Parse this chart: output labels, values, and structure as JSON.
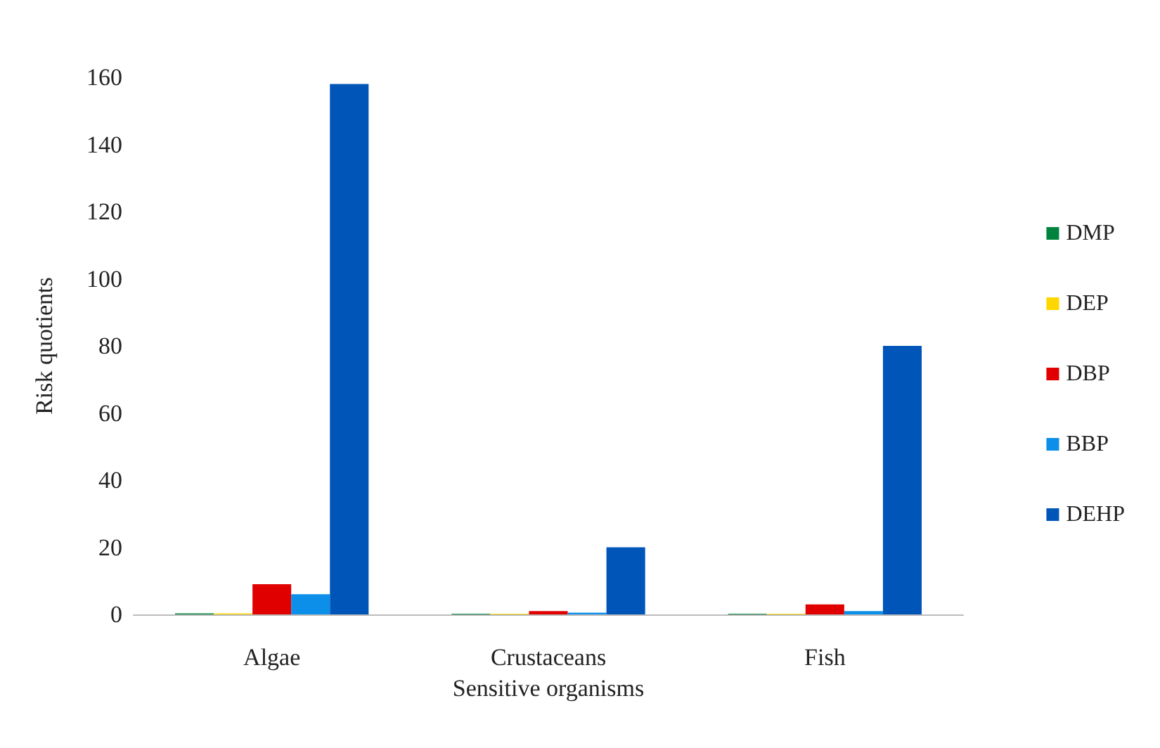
{
  "chart_data": {
    "type": "bar",
    "xlabel": "Sensitive organisms",
    "ylabel": "Risk quotients",
    "categories": [
      "Algae",
      "Crustaceans",
      "Fish"
    ],
    "series": [
      {
        "name": "DMP",
        "color": "#00843d",
        "values": [
          0.3,
          0.2,
          0.2
        ]
      },
      {
        "name": "DEP",
        "color": "#ffd700",
        "values": [
          0.3,
          0.2,
          0.2
        ]
      },
      {
        "name": "DBP",
        "color": "#e00000",
        "values": [
          9,
          1,
          3
        ]
      },
      {
        "name": "BBP",
        "color": "#0b8fe8",
        "values": [
          6,
          0.5,
          1
        ]
      },
      {
        "name": "DEHP",
        "color": "#0055b8",
        "values": [
          158,
          20,
          80
        ]
      }
    ],
    "ylim": [
      0,
      160
    ],
    "yticks": [
      0,
      20,
      40,
      60,
      80,
      100,
      120,
      140,
      160
    ],
    "grid": false,
    "legend": "right"
  }
}
